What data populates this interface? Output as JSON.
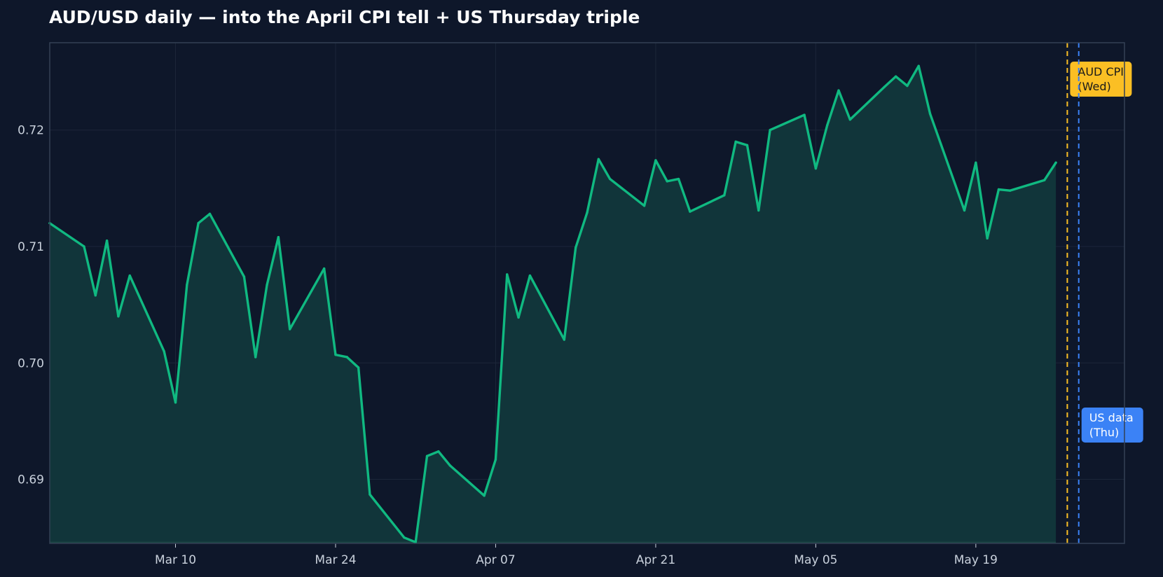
{
  "chart_data": {
    "type": "area",
    "title": "AUD/USD daily — into the April CPI tell + US Thursday triple",
    "xlabel": "",
    "ylabel": "",
    "x_ticks": [
      "Mar 10",
      "Mar 24",
      "Apr 07",
      "Apr 21",
      "May 05",
      "May 19"
    ],
    "y_ticks": [
      "0.69",
      "0.70",
      "0.71",
      "0.72"
    ],
    "ylim": [
      0.6845,
      0.7275
    ],
    "xlim": [
      "2026-02-27",
      "2026-06-01"
    ],
    "grid": true,
    "series": [
      {
        "color": "#10b981",
        "points": [
          [
            "2026-02-27",
            0.712
          ],
          [
            "2026-03-02",
            0.71
          ],
          [
            "2026-03-03",
            0.7058
          ],
          [
            "2026-03-04",
            0.7105
          ],
          [
            "2026-03-05",
            0.704
          ],
          [
            "2026-03-06",
            0.7075
          ],
          [
            "2026-03-09",
            0.701
          ],
          [
            "2026-03-10",
            0.6966
          ],
          [
            "2026-03-11",
            0.7067
          ],
          [
            "2026-03-12",
            0.712
          ],
          [
            "2026-03-13",
            0.7128
          ],
          [
            "2026-03-16",
            0.7074
          ],
          [
            "2026-03-17",
            0.7005
          ],
          [
            "2026-03-18",
            0.7067
          ],
          [
            "2026-03-19",
            0.7108
          ],
          [
            "2026-03-20",
            0.7029
          ],
          [
            "2026-03-23",
            0.7081
          ],
          [
            "2026-03-24",
            0.7007
          ],
          [
            "2026-03-25",
            0.7005
          ],
          [
            "2026-03-26",
            0.6996
          ],
          [
            "2026-03-27",
            0.6887
          ],
          [
            "2026-03-30",
            0.685
          ],
          [
            "2026-03-31",
            0.6846
          ],
          [
            "2026-04-01",
            0.692
          ],
          [
            "2026-04-02",
            0.6924
          ],
          [
            "2026-04-03",
            0.6912
          ],
          [
            "2026-04-06",
            0.6886
          ],
          [
            "2026-04-07",
            0.6917
          ],
          [
            "2026-04-08",
            0.7076
          ],
          [
            "2026-04-09",
            0.7039
          ],
          [
            "2026-04-10",
            0.7075
          ],
          [
            "2026-04-13",
            0.702
          ],
          [
            "2026-04-14",
            0.7099
          ],
          [
            "2026-04-15",
            0.7129
          ],
          [
            "2026-04-16",
            0.7175
          ],
          [
            "2026-04-17",
            0.7158
          ],
          [
            "2026-04-20",
            0.7135
          ],
          [
            "2026-04-21",
            0.7174
          ],
          [
            "2026-04-22",
            0.7156
          ],
          [
            "2026-04-23",
            0.7158
          ],
          [
            "2026-04-24",
            0.713
          ],
          [
            "2026-04-27",
            0.7144
          ],
          [
            "2026-04-28",
            0.719
          ],
          [
            "2026-04-29",
            0.7187
          ],
          [
            "2026-04-30",
            0.7131
          ],
          [
            "2026-05-01",
            0.72
          ],
          [
            "2026-05-04",
            0.7213
          ],
          [
            "2026-05-05",
            0.7167
          ],
          [
            "2026-05-06",
            0.7204
          ],
          [
            "2026-05-07",
            0.7234
          ],
          [
            "2026-05-08",
            0.7209
          ],
          [
            "2026-05-11",
            0.7237
          ],
          [
            "2026-05-12",
            0.7246
          ],
          [
            "2026-05-13",
            0.7238
          ],
          [
            "2026-05-14",
            0.7255
          ],
          [
            "2026-05-15",
            0.7214
          ],
          [
            "2026-05-18",
            0.7131
          ],
          [
            "2026-05-19",
            0.7172
          ],
          [
            "2026-05-20",
            0.7107
          ],
          [
            "2026-05-21",
            0.7149
          ],
          [
            "2026-05-22",
            0.7148
          ],
          [
            "2026-05-25",
            0.7157
          ],
          [
            "2026-05-26",
            0.7172
          ]
        ]
      }
    ],
    "events": [
      {
        "date": "2026-05-27",
        "label": [
          "AUD CPI",
          "(Wed)"
        ],
        "color": "#fbbf24"
      },
      {
        "date": "2026-05-28",
        "label": [
          "US data",
          "(Thu)"
        ],
        "color": "#3b82f6"
      }
    ],
    "colors": {
      "background": "#0e172a",
      "line": "#10b981",
      "fill": "#11353a",
      "grid": "#1c2639",
      "axis": "#334155",
      "tick_text": "#c9d1dc",
      "title": "#ffffff",
      "cpi": "#fbbf24",
      "us": "#3b82f6"
    }
  }
}
